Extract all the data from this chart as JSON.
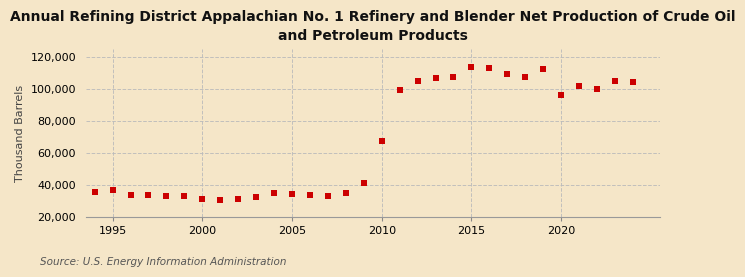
{
  "title": "Annual Refining District Appalachian No. 1 Refinery and Blender Net Production of Crude Oil\nand Petroleum Products",
  "ylabel": "Thousand Barrels",
  "source": "Source: U.S. Energy Information Administration",
  "background_color": "#f5e6c8",
  "plot_background_color": "#f5e6c8",
  "marker_color": "#cc0000",
  "years": [
    1994,
    1995,
    1996,
    1997,
    1998,
    1999,
    2000,
    2001,
    2002,
    2003,
    2004,
    2005,
    2006,
    2007,
    2008,
    2009,
    2010,
    2011,
    2012,
    2013,
    2014,
    2015,
    2016,
    2017,
    2018,
    2019,
    2020,
    2021,
    2022,
    2023,
    2024
  ],
  "values": [
    35500,
    37000,
    34000,
    33500,
    33000,
    33000,
    31500,
    31000,
    31500,
    32500,
    35000,
    34500,
    34000,
    33000,
    35000,
    41500,
    67500,
    99500,
    104500,
    106500,
    107000,
    113500,
    113000,
    109000,
    107500,
    112500,
    96000,
    102000,
    100000,
    104500,
    104000
  ],
  "ylim": [
    20000,
    125000
  ],
  "yticks": [
    20000,
    40000,
    60000,
    80000,
    100000,
    120000
  ],
  "xlim": [
    1993.5,
    2025.5
  ],
  "xticks": [
    1995,
    2000,
    2005,
    2010,
    2015,
    2020
  ],
  "grid_color": "#bbbbbb",
  "title_fontsize": 10,
  "axis_fontsize": 8,
  "tick_fontsize": 8,
  "source_fontsize": 7.5
}
